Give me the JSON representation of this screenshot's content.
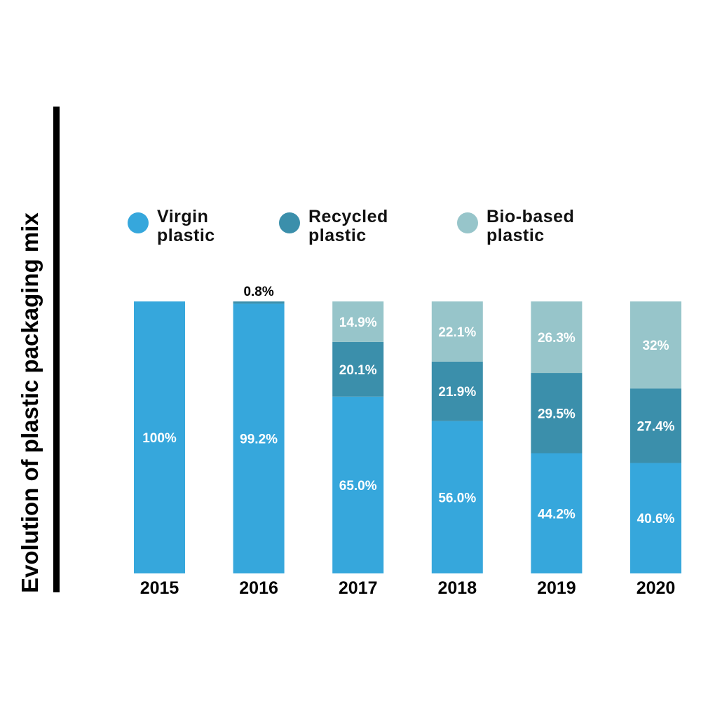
{
  "chart_data": {
    "type": "bar",
    "stacked": true,
    "title": "Evolution of plastic packaging mix",
    "categories": [
      "2015",
      "2016",
      "2017",
      "2018",
      "2019",
      "2020"
    ],
    "ylim": [
      0,
      100
    ],
    "grid": false,
    "legend_position": "top",
    "series": [
      {
        "name": "Virgin plastic",
        "legend_lines": [
          "Virgin",
          "plastic"
        ],
        "color": "#36a7dc",
        "values": [
          100,
          99.2,
          65.0,
          56.0,
          44.2,
          40.6
        ],
        "labels": [
          "100%",
          "99.2%",
          "65.0%",
          "56.0%",
          "44.2%",
          "40.6%"
        ]
      },
      {
        "name": "Recycled plastic",
        "legend_lines": [
          "Recycled",
          "plastic"
        ],
        "color": "#3b8fab",
        "values": [
          0,
          0.8,
          20.1,
          21.9,
          29.5,
          27.4
        ],
        "labels": [
          "",
          "0.8%",
          "20.1%",
          "21.9%",
          "29.5%",
          "27.4%"
        ]
      },
      {
        "name": "Bio-based plastic",
        "legend_lines": [
          "Bio-based",
          "plastic"
        ],
        "color": "#97c5ca",
        "values": [
          0,
          0,
          14.9,
          22.1,
          26.3,
          32
        ],
        "labels": [
          "",
          "",
          "14.9%",
          "22.1%",
          "26.3%",
          "32%"
        ]
      }
    ]
  }
}
